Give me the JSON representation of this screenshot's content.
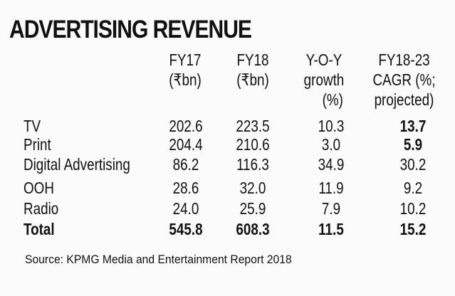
{
  "title": "ADVERTISING REVENUE",
  "columns": [
    [
      "FY17",
      "(₹bn)"
    ],
    [
      "FY18",
      "(₹bn)"
    ],
    [
      "Y-O-Y",
      "growth",
      "(%)"
    ],
    [
      "FY18-23",
      "CAGR (%;",
      "projected)"
    ]
  ],
  "rows": [
    {
      "label": "TV",
      "values": [
        "202.6",
        "223.5",
        "10.3",
        "13.7"
      ]
    },
    {
      "label": "Print",
      "values": [
        "204.4",
        "210.6",
        "3.0",
        "5.9"
      ]
    },
    {
      "label": "Digital Advertising",
      "values": [
        "86.2",
        "116.3",
        "34.9",
        "30.2"
      ]
    },
    {
      "label": "OOH",
      "values": [
        "28.6",
        "32.0",
        "11.9",
        "9.2"
      ]
    },
    {
      "label": "Radio",
      "values": [
        "24.0",
        "25.9",
        "7.9",
        "10.2"
      ]
    },
    {
      "label": "Total",
      "values": [
        "545.8",
        "608.3",
        "11.5",
        "15.2"
      ]
    }
  ],
  "source": "Source: KPMG Media and Entertainment Report 2018"
}
